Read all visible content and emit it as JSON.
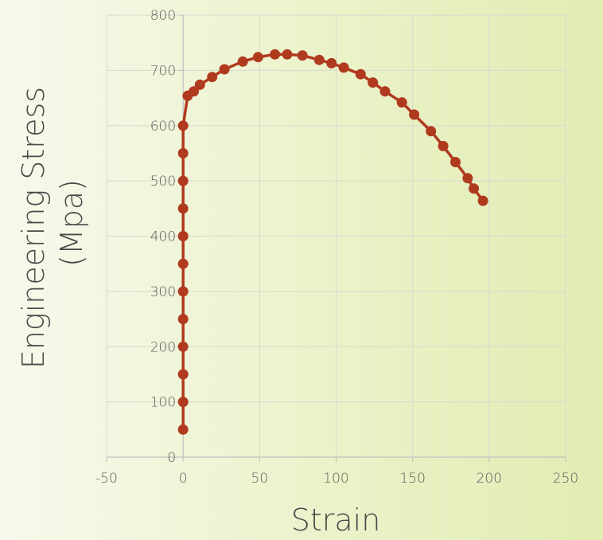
{
  "chart_data": {
    "type": "scatter",
    "title": "",
    "xlabel": "Strain",
    "ylabel_lines": [
      "Engineering Stress",
      "(Mpa)"
    ],
    "xlim": [
      -50,
      250
    ],
    "ylim": [
      0,
      800
    ],
    "xticks": [
      -50,
      0,
      50,
      100,
      150,
      200,
      250
    ],
    "yticks": [
      0,
      100,
      200,
      300,
      400,
      500,
      600,
      700,
      800
    ],
    "grid": true,
    "legend": "none",
    "series_color": "#b03a1e",
    "series": [
      {
        "x": [
          0,
          0,
          0,
          0,
          0,
          0,
          0,
          0,
          0,
          0,
          0,
          0,
          3,
          7,
          11,
          19,
          27,
          39,
          49,
          60,
          68,
          78,
          89,
          97,
          105,
          116,
          124,
          132,
          143,
          151,
          162,
          170,
          178,
          186,
          190,
          196
        ],
        "y": [
          50,
          100,
          150,
          200,
          250,
          300,
          350,
          400,
          450,
          500,
          550,
          600,
          654,
          662,
          674,
          688,
          702,
          716,
          724,
          729,
          729,
          727,
          719,
          713,
          705,
          693,
          678,
          662,
          642,
          620,
          590,
          563,
          534,
          505,
          486,
          464
        ]
      }
    ]
  }
}
